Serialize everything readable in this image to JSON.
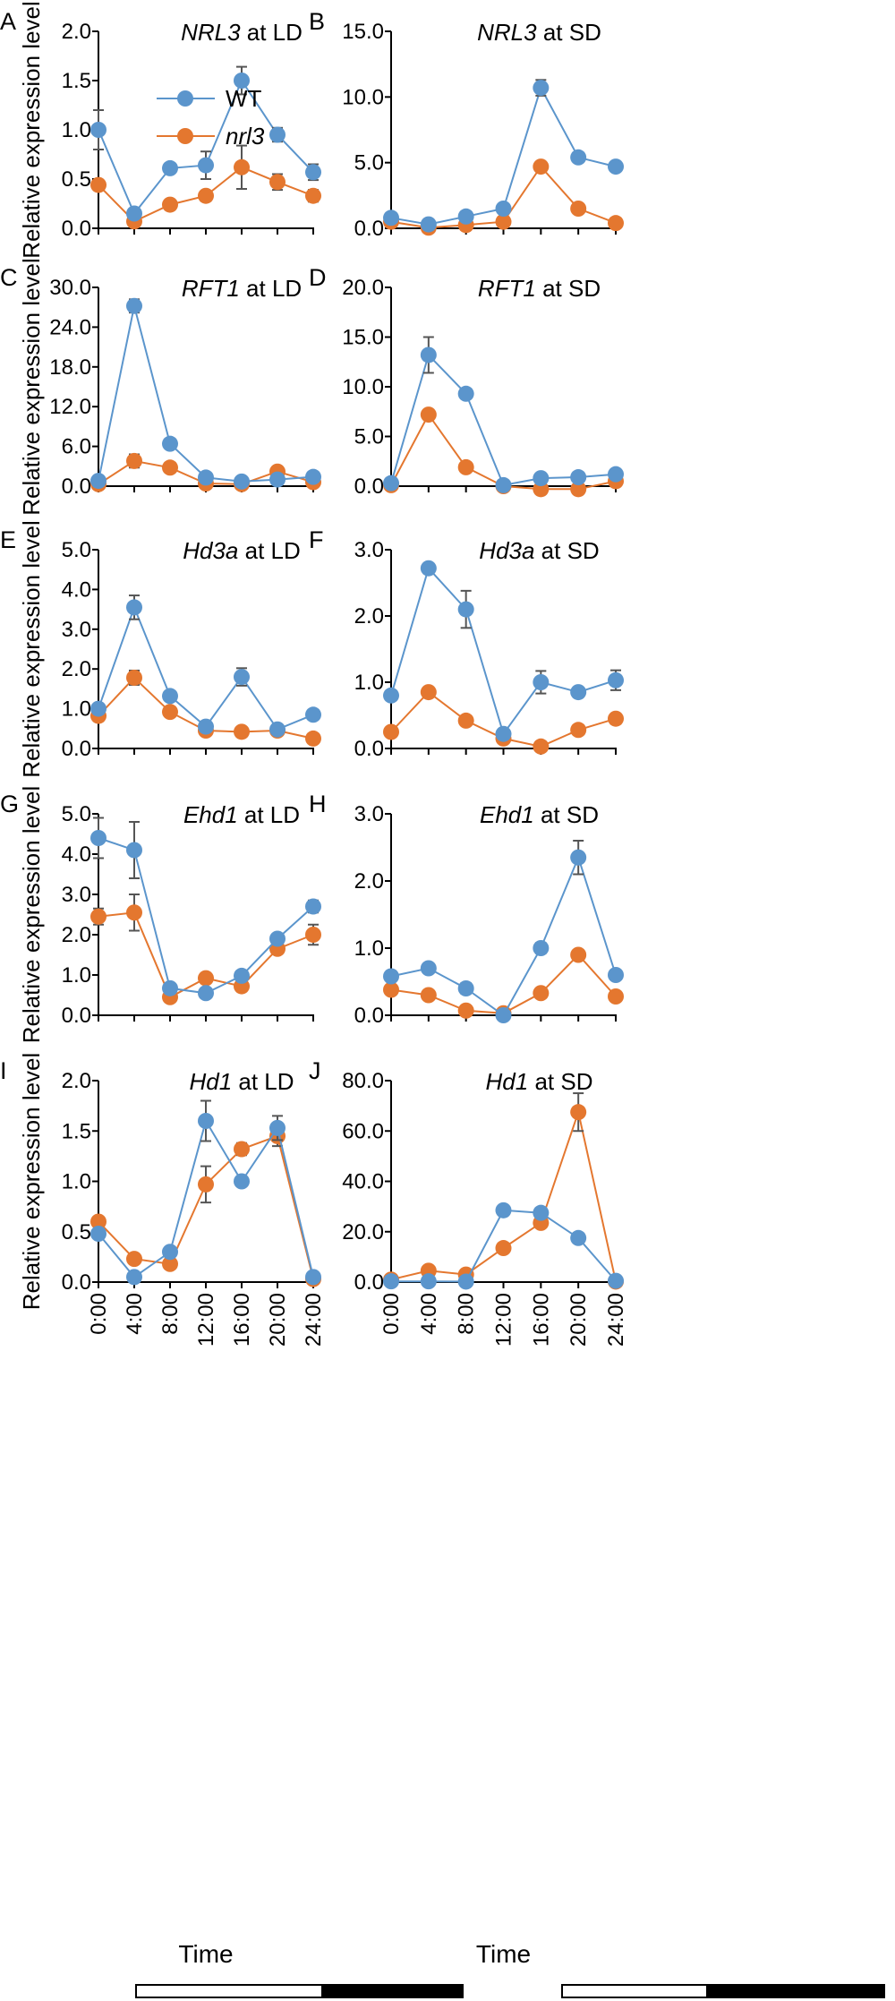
{
  "colors": {
    "wt": "#5b95cc",
    "nrl3": "#e4772f",
    "axis": "#000000",
    "errorbar": "#555555"
  },
  "legend": [
    {
      "name": "WT",
      "italic": false,
      "color": "#5b95cc"
    },
    {
      "name": "nrl3",
      "italic": true,
      "color": "#e4772f"
    }
  ],
  "ylabel": "Relative expression level",
  "xlabel": "Time",
  "x_ticks": [
    "0:00",
    "4:00",
    "8:00",
    "12:00",
    "16:00",
    "20:00",
    "24:00"
  ],
  "chart_data": [
    {
      "letter": "A",
      "gene": "NRL3",
      "suffix": " at LD",
      "type": "line",
      "ylim": [
        0,
        2.0
      ],
      "yticks": [
        "0.0",
        "0.5",
        "1.0",
        "1.5",
        "2.0"
      ],
      "series": [
        {
          "name": "WT",
          "values": [
            1.0,
            0.15,
            0.61,
            0.64,
            1.5,
            0.95,
            0.57
          ],
          "err": [
            0.2,
            0.04,
            0.04,
            0.14,
            0.14,
            0.07,
            0.08
          ]
        },
        {
          "name": "nrl3",
          "values": [
            0.44,
            0.07,
            0.24,
            0.33,
            0.62,
            0.47,
            0.33
          ],
          "err": [
            0.05,
            0.03,
            0.03,
            0.05,
            0.22,
            0.08,
            0.06
          ]
        }
      ]
    },
    {
      "letter": "B",
      "gene": "NRL3",
      "suffix": " at SD",
      "type": "line",
      "ylim": [
        0,
        15.0
      ],
      "yticks": [
        "0.0",
        "5.0",
        "10.0",
        "15.0"
      ],
      "series": [
        {
          "name": "WT",
          "values": [
            0.8,
            0.3,
            0.9,
            1.5,
            10.7,
            5.4,
            4.7
          ],
          "err": [
            0.1,
            0.1,
            0.1,
            0.1,
            0.6,
            0.2,
            0.2
          ]
        },
        {
          "name": "nrl3",
          "values": [
            0.5,
            0.05,
            0.25,
            0.5,
            4.7,
            1.5,
            0.4
          ],
          "err": [
            0.05,
            0.05,
            0.05,
            0.05,
            0.2,
            0.1,
            0.05
          ]
        }
      ]
    },
    {
      "letter": "C",
      "gene": "RFT1",
      "suffix": " at LD",
      "type": "line",
      "ylim": [
        0,
        30.0
      ],
      "yticks": [
        "0.0",
        "6.0",
        "12.0",
        "18.0",
        "24.0",
        "30.0"
      ],
      "series": [
        {
          "name": "WT",
          "values": [
            0.8,
            27.2,
            6.4,
            1.3,
            0.7,
            1.0,
            1.4
          ],
          "err": [
            0.1,
            1.0,
            0.4,
            0.1,
            0.1,
            0.1,
            0.1
          ]
        },
        {
          "name": "nrl3",
          "values": [
            0.3,
            3.8,
            2.8,
            0.4,
            0.3,
            2.2,
            0.6
          ],
          "err": [
            0.05,
            1.0,
            0.2,
            0.05,
            0.05,
            0.2,
            0.1
          ]
        }
      ]
    },
    {
      "letter": "D",
      "gene": "RFT1",
      "suffix": " at SD",
      "type": "line",
      "ylim": [
        0,
        20.0
      ],
      "yticks": [
        "0.0",
        "5.0",
        "10.0",
        "15.0",
        "20.0"
      ],
      "series": [
        {
          "name": "WT",
          "values": [
            0.3,
            13.2,
            9.3,
            0.1,
            0.8,
            0.9,
            1.2
          ],
          "err": [
            0.05,
            1.8,
            0.4,
            0.05,
            0.1,
            0.1,
            0.1
          ]
        },
        {
          "name": "nrl3",
          "values": [
            0.1,
            7.2,
            1.9,
            0.0,
            -0.3,
            -0.3,
            0.5
          ],
          "err": [
            0.05,
            0.3,
            0.1,
            0.05,
            0.05,
            0.05,
            0.1
          ]
        }
      ]
    },
    {
      "letter": "E",
      "gene": "Hd3a",
      "suffix": " at LD",
      "type": "line",
      "ylim": [
        0,
        5.0
      ],
      "yticks": [
        "0.0",
        "1.0",
        "2.0",
        "3.0",
        "4.0",
        "5.0"
      ],
      "series": [
        {
          "name": "WT",
          "values": [
            1.0,
            3.55,
            1.32,
            0.55,
            1.8,
            0.48,
            0.85
          ],
          "err": [
            0.1,
            0.3,
            0.05,
            0.05,
            0.22,
            0.05,
            0.05
          ]
        },
        {
          "name": "nrl3",
          "values": [
            0.82,
            1.78,
            0.92,
            0.45,
            0.42,
            0.45,
            0.25
          ],
          "err": [
            0.05,
            0.18,
            0.05,
            0.05,
            0.05,
            0.05,
            0.05
          ]
        }
      ]
    },
    {
      "letter": "F",
      "gene": "Hd3a",
      "suffix": " at SD",
      "type": "line",
      "ylim": [
        0,
        3.0
      ],
      "yticks": [
        "0.0",
        "1.0",
        "2.0",
        "3.0"
      ],
      "series": [
        {
          "name": "WT",
          "values": [
            0.8,
            2.72,
            2.1,
            0.22,
            1.0,
            0.85,
            1.03
          ],
          "err": [
            0.05,
            0.06,
            0.28,
            0.05,
            0.17,
            0.05,
            0.15
          ]
        },
        {
          "name": "nrl3",
          "values": [
            0.25,
            0.85,
            0.42,
            0.15,
            0.03,
            0.28,
            0.45
          ],
          "err": [
            0.02,
            0.03,
            0.03,
            0.02,
            0.02,
            0.02,
            0.03
          ]
        }
      ]
    },
    {
      "letter": "G",
      "gene": "Ehd1",
      "suffix": " at LD",
      "type": "line",
      "ylim": [
        0,
        5.0
      ],
      "yticks": [
        "0.0",
        "1.0",
        "2.0",
        "3.0",
        "4.0",
        "5.0"
      ],
      "series": [
        {
          "name": "WT",
          "values": [
            4.4,
            4.1,
            0.67,
            0.55,
            0.98,
            1.9,
            2.7
          ],
          "err": [
            0.5,
            0.7,
            0.05,
            0.05,
            0.05,
            0.05,
            0.15
          ]
        },
        {
          "name": "nrl3",
          "values": [
            2.45,
            2.55,
            0.45,
            0.92,
            0.72,
            1.65,
            2.0
          ],
          "err": [
            0.2,
            0.45,
            0.05,
            0.05,
            0.05,
            0.05,
            0.25
          ]
        }
      ]
    },
    {
      "letter": "H",
      "gene": "Ehd1",
      "suffix": " at SD",
      "type": "line",
      "ylim": [
        0,
        3.0
      ],
      "yticks": [
        "0.0",
        "1.0",
        "2.0",
        "3.0"
      ],
      "series": [
        {
          "name": "WT",
          "values": [
            0.58,
            0.7,
            0.4,
            0.0,
            1.0,
            2.35,
            0.6
          ],
          "err": [
            0.08,
            0.04,
            0.08,
            0.02,
            0.08,
            0.25,
            0.05
          ]
        },
        {
          "name": "nrl3",
          "values": [
            0.38,
            0.3,
            0.07,
            0.03,
            0.33,
            0.9,
            0.28
          ],
          "err": [
            0.05,
            0.03,
            0.02,
            0.02,
            0.03,
            0.04,
            0.05
          ]
        }
      ]
    },
    {
      "letter": "I",
      "gene": "Hd1",
      "suffix": " at LD",
      "type": "line",
      "ylim": [
        0,
        2.0
      ],
      "yticks": [
        "0.0",
        "0.5",
        "1.0",
        "1.5",
        "2.0"
      ],
      "series": [
        {
          "name": "WT",
          "values": [
            0.48,
            0.05,
            0.3,
            1.6,
            1.0,
            1.53,
            0.05
          ],
          "err": [
            0.03,
            0.02,
            0.02,
            0.2,
            0.03,
            0.12,
            0.02
          ]
        },
        {
          "name": "nrl3",
          "values": [
            0.6,
            0.23,
            0.18,
            0.97,
            1.32,
            1.45,
            0.03
          ],
          "err": [
            0.03,
            0.02,
            0.02,
            0.18,
            0.06,
            0.1,
            0.02
          ]
        }
      ]
    },
    {
      "letter": "J",
      "gene": "Hd1",
      "suffix": " at SD",
      "type": "line",
      "ylim": [
        0,
        80.0
      ],
      "yticks": [
        "0.0",
        "20.0",
        "40.0",
        "60.0",
        "80.0"
      ],
      "series": [
        {
          "name": "WT",
          "values": [
            0.3,
            0.3,
            0.2,
            28.5,
            27.5,
            17.5,
            0.5
          ],
          "err": [
            0.1,
            0.1,
            0.1,
            0.5,
            0.5,
            0.5,
            0.1
          ]
        },
        {
          "name": "nrl3",
          "values": [
            1.0,
            4.5,
            3.0,
            13.5,
            23.5,
            67.5,
            0.2
          ],
          "err": [
            0.2,
            0.3,
            0.2,
            0.5,
            0.5,
            7.5,
            0.1
          ]
        }
      ]
    }
  ]
}
